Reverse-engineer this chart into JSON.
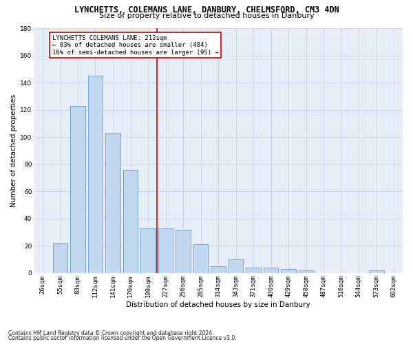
{
  "title": "LYNCHETTS, COLEMANS LANE, DANBURY, CHELMSFORD, CM3 4DN",
  "subtitle": "Size of property relative to detached houses in Danbury",
  "xlabel": "Distribution of detached houses by size in Danbury",
  "ylabel": "Number of detached properties",
  "bar_labels": [
    "26sqm",
    "55sqm",
    "83sqm",
    "112sqm",
    "141sqm",
    "170sqm",
    "199sqm",
    "227sqm",
    "256sqm",
    "285sqm",
    "314sqm",
    "343sqm",
    "371sqm",
    "400sqm",
    "429sqm",
    "458sqm",
    "487sqm",
    "516sqm",
    "544sqm",
    "573sqm",
    "602sqm"
  ],
  "bar_values": [
    0,
    22,
    123,
    145,
    103,
    76,
    33,
    33,
    32,
    21,
    5,
    10,
    4,
    4,
    3,
    2,
    0,
    0,
    0,
    2,
    0
  ],
  "bar_color": "#c2d8f0",
  "bar_edge_color": "#6699cc",
  "vline_color": "#cc0000",
  "ylim": [
    0,
    180
  ],
  "yticks": [
    0,
    20,
    40,
    60,
    80,
    100,
    120,
    140,
    160,
    180
  ],
  "annotation_line1": "LYNCHETTS COLEMANS LANE: 212sqm",
  "annotation_line2": "← 83% of detached houses are smaller (484)",
  "annotation_line3": "16% of semi-detached houses are larger (95) →",
  "annotation_border_color": "#cc0000",
  "footer_line1": "Contains HM Land Registry data © Crown copyright and database right 2024.",
  "footer_line2": "Contains public sector information licensed under the Open Government Licence v3.0.",
  "bg_color": "#e8eef8",
  "grid_color": "#c8d0e8",
  "title_fontsize": 8.5,
  "subtitle_fontsize": 8,
  "axis_label_fontsize": 7.5,
  "tick_fontsize": 6.5,
  "annotation_fontsize": 6.5,
  "footer_fontsize": 5.5
}
